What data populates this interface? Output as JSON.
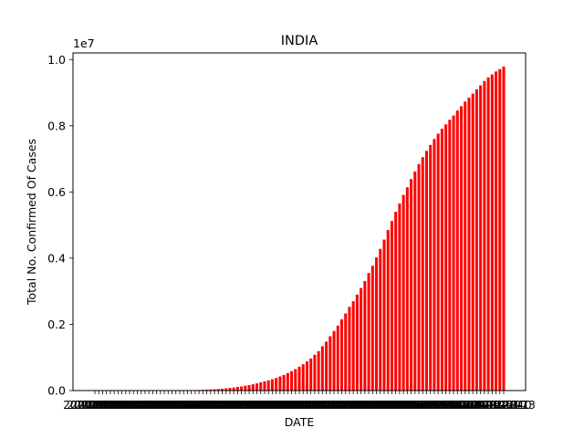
{
  "chart_data": {
    "type": "bar",
    "title": "INDIA",
    "xlabel": "DATE",
    "ylabel": "Total No. Confirmed Of Cases",
    "y_offset_label": "1e7",
    "y_multiplier": 10000000,
    "ylim": [
      0,
      10200000
    ],
    "y_ticks": [
      0,
      2000000,
      4000000,
      6000000,
      8000000,
      10000000
    ],
    "y_tick_labels": [
      "0.0",
      "0.2",
      "0.4",
      "0.6",
      "0.8",
      "1.0"
    ],
    "x_tick_labels_note": "overlapping unreadable date labels",
    "bar_color": "#ff0000",
    "grid": false,
    "legend": "none",
    "dates": [
      "2020-01-30",
      "2020-02-02",
      "2020-02-05",
      "2020-02-08",
      "2020-02-11",
      "2020-02-14",
      "2020-02-17",
      "2020-02-20",
      "2020-02-23",
      "2020-02-26",
      "2020-02-29",
      "2020-03-03",
      "2020-03-06",
      "2020-03-09",
      "2020-03-12",
      "2020-03-15",
      "2020-03-18",
      "2020-03-21",
      "2020-03-24",
      "2020-03-27",
      "2020-03-30",
      "2020-04-02",
      "2020-04-05",
      "2020-04-08",
      "2020-04-11",
      "2020-04-14",
      "2020-04-17",
      "2020-04-20",
      "2020-04-23",
      "2020-04-26",
      "2020-04-29",
      "2020-05-02",
      "2020-05-05",
      "2020-05-08",
      "2020-05-11",
      "2020-05-14",
      "2020-05-17",
      "2020-05-20",
      "2020-05-23",
      "2020-05-26",
      "2020-05-29",
      "2020-06-01",
      "2020-06-04",
      "2020-06-07",
      "2020-06-10",
      "2020-06-13",
      "2020-06-16",
      "2020-06-19",
      "2020-06-22",
      "2020-06-25",
      "2020-06-28",
      "2020-07-01",
      "2020-07-04",
      "2020-07-07",
      "2020-07-10",
      "2020-07-13",
      "2020-07-16",
      "2020-07-19",
      "2020-07-22",
      "2020-07-25",
      "2020-07-28",
      "2020-07-31",
      "2020-08-03",
      "2020-08-06",
      "2020-08-09",
      "2020-08-12",
      "2020-08-15",
      "2020-08-18",
      "2020-08-21",
      "2020-08-24",
      "2020-08-27",
      "2020-08-30",
      "2020-09-02",
      "2020-09-05",
      "2020-09-08",
      "2020-09-11",
      "2020-09-14",
      "2020-09-17",
      "2020-09-20",
      "2020-09-23",
      "2020-09-26",
      "2020-09-29",
      "2020-10-02",
      "2020-10-05",
      "2020-10-08",
      "2020-10-11",
      "2020-10-14",
      "2020-10-17",
      "2020-10-20",
      "2020-10-23",
      "2020-10-26",
      "2020-10-29",
      "2020-11-01",
      "2020-11-04",
      "2020-11-07",
      "2020-11-10",
      "2020-11-13",
      "2020-11-16",
      "2020-11-19",
      "2020-11-22",
      "2020-11-25",
      "2020-11-28",
      "2020-12-01",
      "2020-12-04",
      "2020-12-07",
      "2020-12-10",
      "2020-12-13"
    ],
    "values": [
      1,
      2,
      3,
      3,
      3,
      3,
      3,
      3,
      3,
      3,
      3,
      5,
      31,
      43,
      74,
      107,
      151,
      330,
      519,
      724,
      1250,
      2100,
      3400,
      5200,
      7600,
      10400,
      13400,
      17200,
      22000,
      26600,
      31800,
      37300,
      46400,
      56300,
      67200,
      78000,
      90900,
      111000,
      125000,
      146000,
      165000,
      190000,
      216000,
      247000,
      277000,
      309000,
      343000,
      381000,
      426000,
      474000,
      529000,
      585000,
      648000,
      720000,
      794000,
      879000,
      968000,
      1080000,
      1190000,
      1340000,
      1480000,
      1640000,
      1800000,
      1960000,
      2150000,
      2330000,
      2530000,
      2700000,
      2900000,
      3100000,
      3310000,
      3550000,
      3770000,
      4020000,
      4280000,
      4560000,
      4850000,
      5120000,
      5400000,
      5650000,
      5910000,
      6140000,
      6390000,
      6620000,
      6840000,
      7050000,
      7240000,
      7420000,
      7600000,
      7760000,
      7910000,
      8040000,
      8180000,
      8310000,
      8460000,
      8590000,
      8730000,
      8850000,
      8970000,
      9100000,
      9220000,
      9350000,
      9460000,
      9550000,
      9640000,
      9710000,
      9790000
    ]
  }
}
